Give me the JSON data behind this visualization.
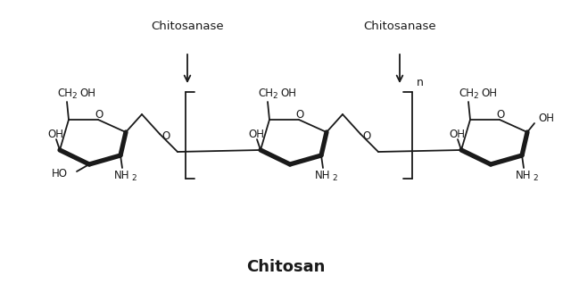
{
  "title": "Chitosan",
  "label_chitosanase1": "Chitosanase",
  "label_chitosanase2": "Chitosanase",
  "bg_color": "#ffffff",
  "line_color": "#1a1a1a",
  "text_color": "#1a1a1a",
  "title_fontsize": 13,
  "chem_fontsize": 8.5
}
